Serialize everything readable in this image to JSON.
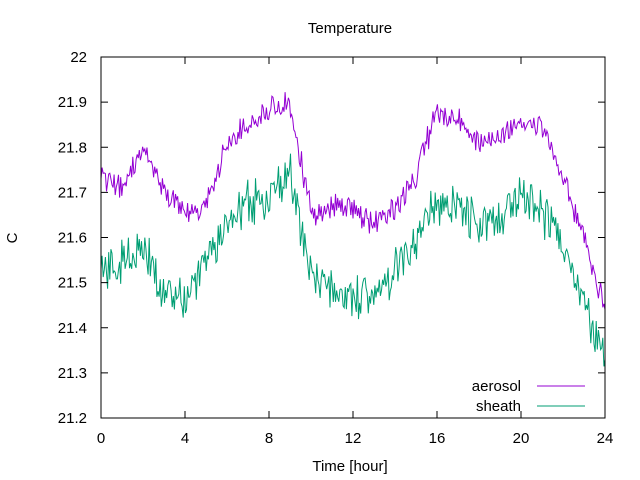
{
  "chart_data": {
    "type": "line",
    "title": "Temperature",
    "xlabel": "Time [hour]",
    "ylabel": "C",
    "xlim": [
      0,
      24
    ],
    "ylim": [
      21.2,
      22.0
    ],
    "xticks": [
      0,
      4,
      8,
      12,
      16,
      20,
      24
    ],
    "xtick_labels": [
      "0",
      "4",
      "8",
      "12",
      "16",
      "20",
      "24"
    ],
    "yticks": [
      21.2,
      21.3,
      21.4,
      21.5,
      21.6,
      21.7,
      21.8,
      21.9,
      22.0
    ],
    "ytick_labels": [
      "21.2",
      "21.3",
      "21.4",
      "21.5",
      "21.6",
      "21.7",
      "21.8",
      "21.9",
      "22"
    ],
    "grid": false,
    "legend_position": "bottom-right",
    "series": [
      {
        "name": "aerosol",
        "color": "#9400d3",
        "x": [
          0,
          1,
          2,
          3,
          4,
          5,
          6,
          7,
          8,
          9,
          10,
          11,
          12,
          13,
          14,
          15,
          16,
          17,
          18,
          19,
          20,
          21,
          22,
          23,
          24
        ],
        "y": [
          21.73,
          21.72,
          21.79,
          21.7,
          21.66,
          21.68,
          21.8,
          21.85,
          21.88,
          21.9,
          21.65,
          21.67,
          21.66,
          21.63,
          21.66,
          21.74,
          21.88,
          21.86,
          21.81,
          21.83,
          21.86,
          21.85,
          21.74,
          21.6,
          21.44
        ]
      },
      {
        "name": "sheath",
        "color": "#009e73",
        "x": [
          0,
          1,
          2,
          3,
          4,
          5,
          6,
          7,
          8,
          9,
          10,
          11,
          12,
          13,
          14,
          15,
          16,
          17,
          18,
          19,
          20,
          21,
          22,
          23,
          24
        ],
        "y": [
          21.53,
          21.54,
          21.57,
          21.48,
          21.46,
          21.55,
          21.63,
          21.68,
          21.69,
          21.74,
          21.52,
          21.47,
          21.47,
          21.46,
          21.52,
          21.59,
          21.68,
          21.66,
          21.63,
          21.64,
          21.7,
          21.66,
          21.59,
          21.45,
          21.33
        ]
      }
    ]
  }
}
